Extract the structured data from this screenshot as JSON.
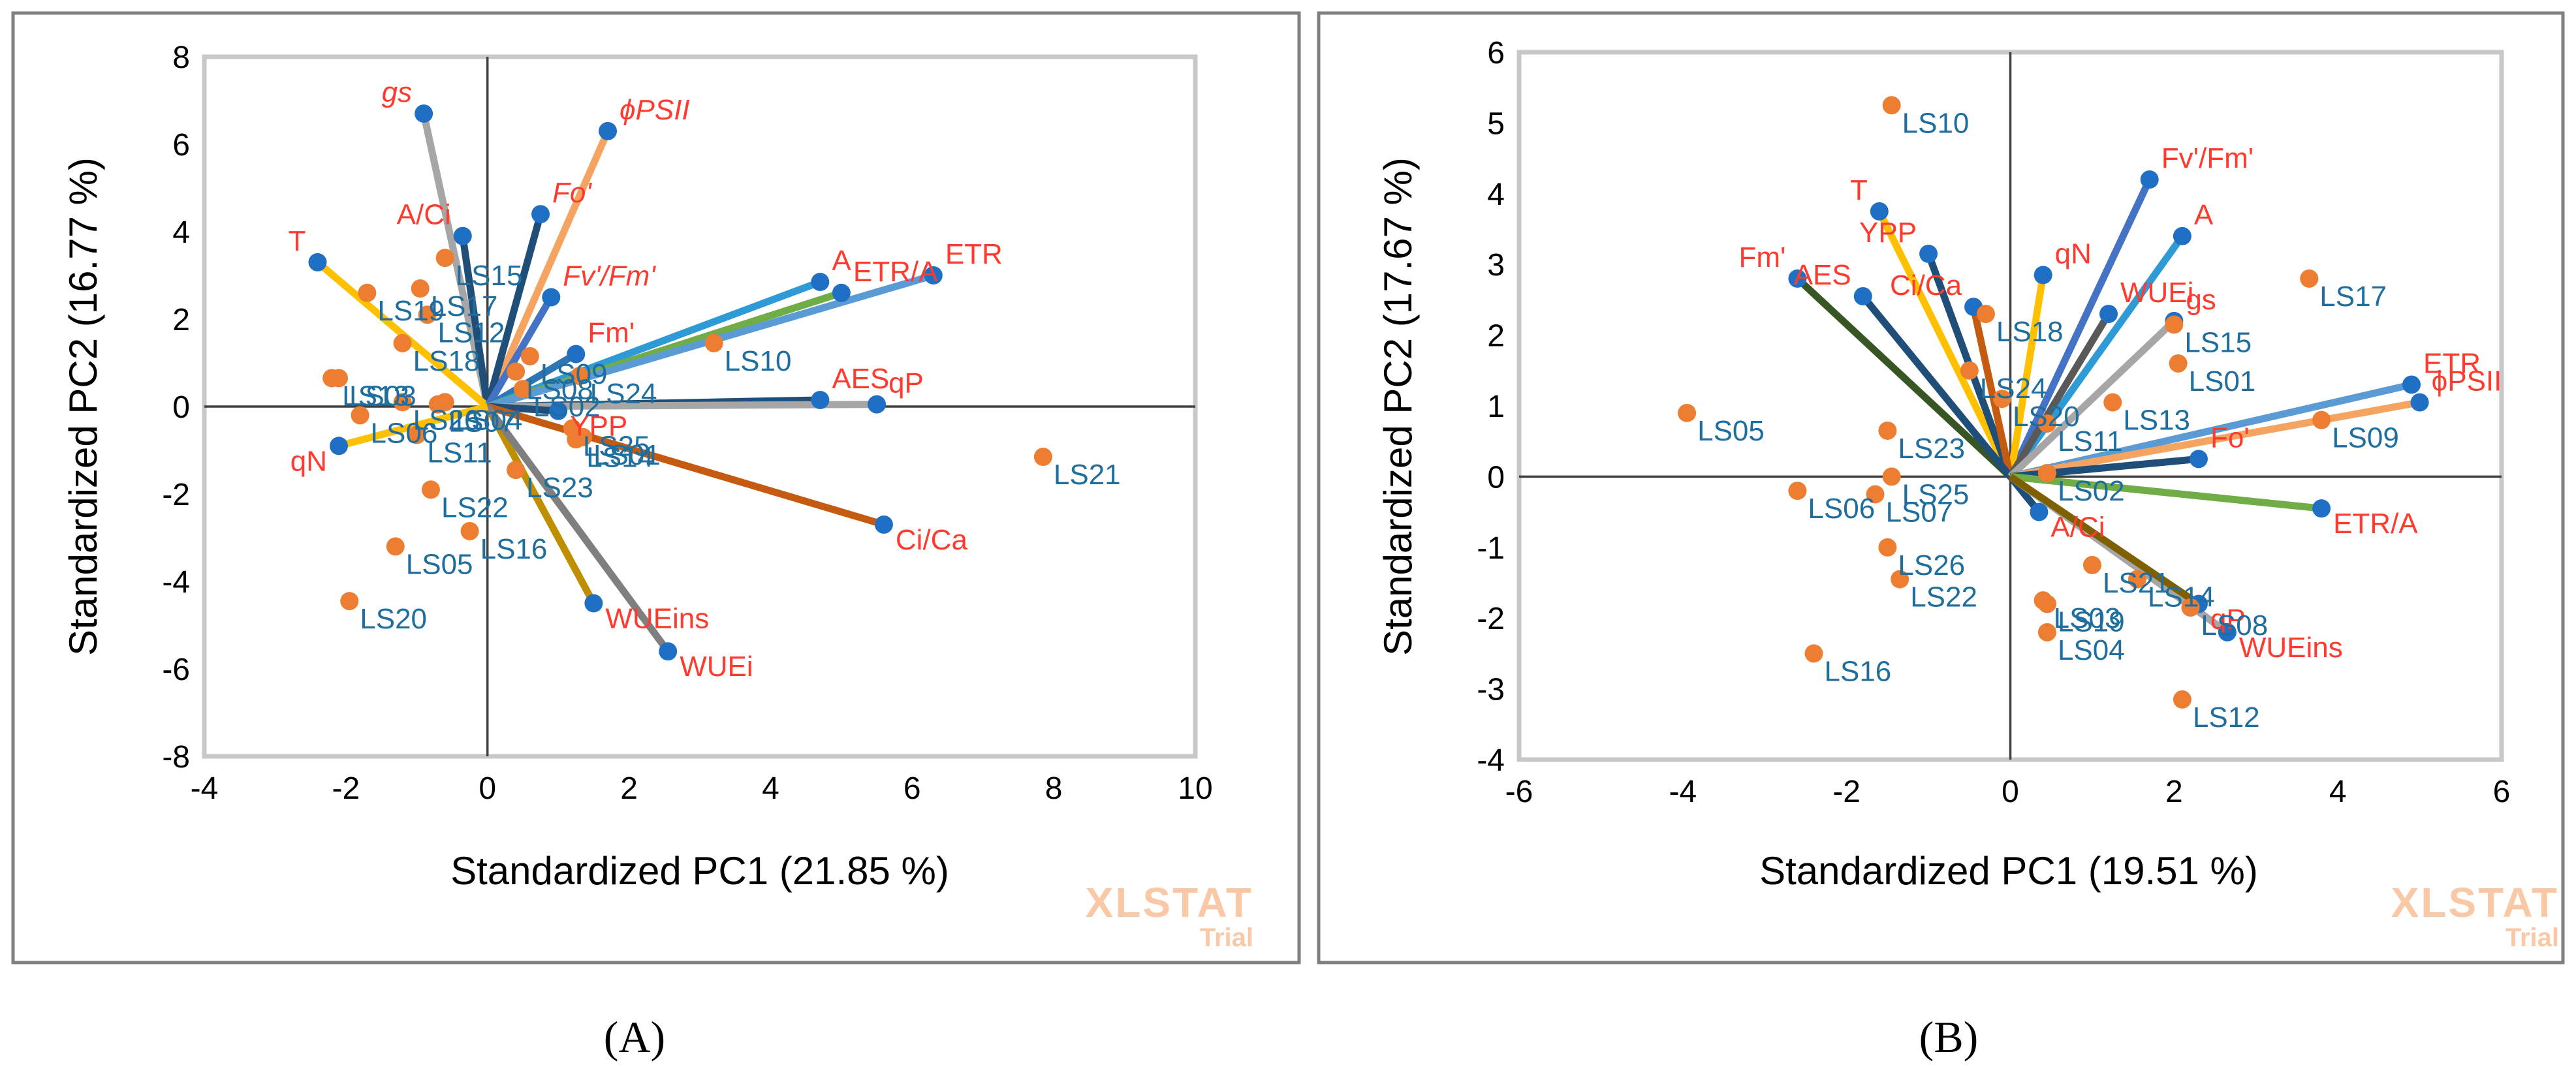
{
  "chart_data": [
    {
      "type": "scatter",
      "subtype": "biplot",
      "panel_label": "(A)",
      "xlabel": "Standardized PC1 (21.85 %)",
      "ylabel": "Standardized PC2  (16.77 %)",
      "xlim": [
        -4,
        10
      ],
      "ylim": [
        -8,
        8
      ],
      "xticks": [
        -4,
        -2,
        0,
        2,
        4,
        6,
        8,
        10
      ],
      "yticks": [
        -8,
        -6,
        -4,
        -2,
        0,
        2,
        4,
        6,
        8
      ],
      "watermark": [
        "XLSTAT",
        "Trial"
      ],
      "variables": [
        {
          "name": "gs",
          "x": -0.9,
          "y": 6.7,
          "color": "#a6a6a6",
          "italic": true
        },
        {
          "name": "ϕPSII",
          "x": 1.7,
          "y": 6.3,
          "color": "#f4a460",
          "italic": true
        },
        {
          "name": "Fo'",
          "x": 0.75,
          "y": 4.4,
          "color": "#1f4e79",
          "italic": true
        },
        {
          "name": "A/Ci",
          "x": -0.35,
          "y": 3.9,
          "color": "#1f4e79",
          "italic": false
        },
        {
          "name": "T",
          "x": -2.4,
          "y": 3.3,
          "color": "#ffc000",
          "italic": false
        },
        {
          "name": "Fv'/Fm'",
          "x": 0.9,
          "y": 2.5,
          "color": "#4472c4",
          "italic": true
        },
        {
          "name": "Fm'",
          "x": 1.25,
          "y": 1.2,
          "color": "#2e75b6",
          "italic": false
        },
        {
          "name": "A",
          "x": 4.7,
          "y": 2.85,
          "color": "#2e9bd6",
          "italic": false
        },
        {
          "name": "ETR/A",
          "x": 5.0,
          "y": 2.6,
          "color": "#70ad47",
          "italic": false
        },
        {
          "name": "ETR",
          "x": 6.3,
          "y": 3.0,
          "color": "#5b9bd5",
          "italic": false
        },
        {
          "name": "AES",
          "x": 4.7,
          "y": 0.15,
          "color": "#1f4e79",
          "italic": false
        },
        {
          "name": "qP",
          "x": 5.5,
          "y": 0.05,
          "color": "#a6a6a6",
          "italic": false
        },
        {
          "name": "YPP",
          "x": 1.0,
          "y": -0.1,
          "color": "#1f4e79",
          "italic": false
        },
        {
          "name": "Ci/Ca",
          "x": 5.6,
          "y": -2.7,
          "color": "#c55a11",
          "italic": false
        },
        {
          "name": "WUEins",
          "x": 1.5,
          "y": -4.5,
          "color": "#bf8f00",
          "italic": false
        },
        {
          "name": "WUEi",
          "x": 2.55,
          "y": -5.6,
          "color": "#7f7f7f",
          "italic": false
        },
        {
          "name": "qN",
          "x": -2.1,
          "y": -0.9,
          "color": "#ffc000",
          "italic": false
        }
      ],
      "observations": [
        {
          "name": "LS15",
          "x": -0.6,
          "y": 3.4
        },
        {
          "name": "LS19",
          "x": -1.7,
          "y": 2.6
        },
        {
          "name": "LS17",
          "x": -0.95,
          "y": 2.7
        },
        {
          "name": "LS12",
          "x": -0.85,
          "y": 2.1
        },
        {
          "name": "LS18",
          "x": -1.2,
          "y": 1.45
        },
        {
          "name": "LS03",
          "x": -2.1,
          "y": 0.65
        },
        {
          "name": "LS13",
          "x": -2.2,
          "y": 0.65
        },
        {
          "name": "LS10",
          "x": 3.2,
          "y": 1.45
        },
        {
          "name": "LS09",
          "x": 0.6,
          "y": 1.15
        },
        {
          "name": "LS08",
          "x": 0.4,
          "y": 0.8
        },
        {
          "name": "LS24",
          "x": 1.3,
          "y": 0.7
        },
        {
          "name": "LS02",
          "x": 0.5,
          "y": 0.4
        },
        {
          "name": "LS26",
          "x": -1.2,
          "y": 0.1
        },
        {
          "name": "LS04",
          "x": -0.6,
          "y": 0.1
        },
        {
          "name": "LS07",
          "x": -0.7,
          "y": 0.05
        },
        {
          "name": "LS25",
          "x": 1.2,
          "y": -0.5
        },
        {
          "name": "LS01",
          "x": 1.35,
          "y": -0.7
        },
        {
          "name": "LS14",
          "x": 1.25,
          "y": -0.75
        },
        {
          "name": "LS06",
          "x": -1.8,
          "y": -0.2
        },
        {
          "name": "LS11",
          "x": -1.0,
          "y": -0.65
        },
        {
          "name": "LS23",
          "x": 0.4,
          "y": -1.45
        },
        {
          "name": "LS22",
          "x": -0.8,
          "y": -1.9
        },
        {
          "name": "LS16",
          "x": -0.25,
          "y": -2.85
        },
        {
          "name": "LS05",
          "x": -1.3,
          "y": -3.2
        },
        {
          "name": "LS20",
          "x": -1.95,
          "y": -4.45
        },
        {
          "name": "LS21",
          "x": 7.85,
          "y": -1.15
        }
      ]
    },
    {
      "type": "scatter",
      "subtype": "biplot",
      "panel_label": "(B)",
      "xlabel": "Standardized PC1 (19.51 %)",
      "ylabel": "Standardized PC2  (17.67 %)",
      "xlim": [
        -6,
        6
      ],
      "ylim": [
        -4,
        6
      ],
      "xticks": [
        -6,
        -4,
        -2,
        0,
        2,
        4,
        6
      ],
      "yticks": [
        -4,
        -3,
        -2,
        -1,
        0,
        1,
        2,
        3,
        4,
        5,
        6
      ],
      "watermark": [
        "XLSTAT",
        "Trial"
      ],
      "variables": [
        {
          "name": "Fv'/Fm'",
          "x": 1.7,
          "y": 4.2,
          "color": "#4472c4",
          "italic": false
        },
        {
          "name": "A",
          "x": 2.1,
          "y": 3.4,
          "color": "#2e9bd6",
          "italic": false
        },
        {
          "name": "T",
          "x": -1.6,
          "y": 3.75,
          "color": "#ffc000",
          "italic": false
        },
        {
          "name": "YPP",
          "x": -1.0,
          "y": 3.15,
          "color": "#1f4e79",
          "italic": false
        },
        {
          "name": "qN",
          "x": 0.4,
          "y": 2.85,
          "color": "#ffc000",
          "italic": false
        },
        {
          "name": "Ci/Ca",
          "x": -0.45,
          "y": 2.4,
          "color": "#c55a11",
          "italic": false
        },
        {
          "name": "Fm'",
          "x": -2.6,
          "y": 2.8,
          "color": "#375623",
          "italic": false
        },
        {
          "name": "AES",
          "x": -1.8,
          "y": 2.55,
          "color": "#1f4e79",
          "italic": false
        },
        {
          "name": "WUEi",
          "x": 1.2,
          "y": 2.3,
          "color": "#595959",
          "italic": false
        },
        {
          "name": "gs",
          "x": 2.0,
          "y": 2.2,
          "color": "#a6a6a6",
          "italic": false
        },
        {
          "name": "ETR",
          "x": 4.9,
          "y": 1.3,
          "color": "#5b9bd5",
          "italic": false
        },
        {
          "name": "ϕPSII",
          "x": 5.0,
          "y": 1.05,
          "color": "#f4a460",
          "italic": false
        },
        {
          "name": "Fo'",
          "x": 2.3,
          "y": 0.25,
          "color": "#1f4e79",
          "italic": false
        },
        {
          "name": "ETR/A",
          "x": 3.8,
          "y": -0.45,
          "color": "#70ad47",
          "italic": false
        },
        {
          "name": "A/Ci",
          "x": 0.35,
          "y": -0.5,
          "color": "#1f4e79",
          "italic": false
        },
        {
          "name": "WUEins",
          "x": 2.65,
          "y": -2.2,
          "color": "#a6a6a6",
          "italic": false
        },
        {
          "name": "qP",
          "x": 2.3,
          "y": -1.8,
          "color": "#7f6000",
          "italic": false
        }
      ],
      "observations": [
        {
          "name": "LS10",
          "x": -1.45,
          "y": 5.25
        },
        {
          "name": "LS17",
          "x": 3.65,
          "y": 2.8
        },
        {
          "name": "LS15",
          "x": 2.0,
          "y": 2.15
        },
        {
          "name": "LS18",
          "x": -0.3,
          "y": 2.3
        },
        {
          "name": "LS24",
          "x": -0.5,
          "y": 1.5
        },
        {
          "name": "LS20",
          "x": -0.1,
          "y": 1.1
        },
        {
          "name": "LS01",
          "x": 2.05,
          "y": 1.6
        },
        {
          "name": "LS09",
          "x": 3.8,
          "y": 0.8
        },
        {
          "name": "LS05",
          "x": -3.95,
          "y": 0.9
        },
        {
          "name": "LS23",
          "x": -1.5,
          "y": 0.65
        },
        {
          "name": "LS13",
          "x": 1.25,
          "y": 1.05
        },
        {
          "name": "LS11",
          "x": 0.45,
          "y": 0.75
        },
        {
          "name": "LS25",
          "x": -1.45,
          "y": 0.0
        },
        {
          "name": "LS06",
          "x": -2.6,
          "y": -0.2
        },
        {
          "name": "LS07",
          "x": -1.65,
          "y": -0.25
        },
        {
          "name": "LS02",
          "x": 0.45,
          "y": 0.05
        },
        {
          "name": "LS26",
          "x": -1.5,
          "y": -1.0
        },
        {
          "name": "LS22",
          "x": -1.35,
          "y": -1.45
        },
        {
          "name": "LS21",
          "x": 1.0,
          "y": -1.25
        },
        {
          "name": "LS14",
          "x": 1.55,
          "y": -1.45
        },
        {
          "name": "LS08",
          "x": 2.2,
          "y": -1.85
        },
        {
          "name": "LS03",
          "x": 0.4,
          "y": -1.75
        },
        {
          "name": "LS19",
          "x": 0.45,
          "y": -1.8
        },
        {
          "name": "LS04",
          "x": 0.45,
          "y": -2.2
        },
        {
          "name": "LS16",
          "x": -2.4,
          "y": -2.5
        },
        {
          "name": "LS12",
          "x": 2.1,
          "y": -3.15
        }
      ]
    }
  ]
}
